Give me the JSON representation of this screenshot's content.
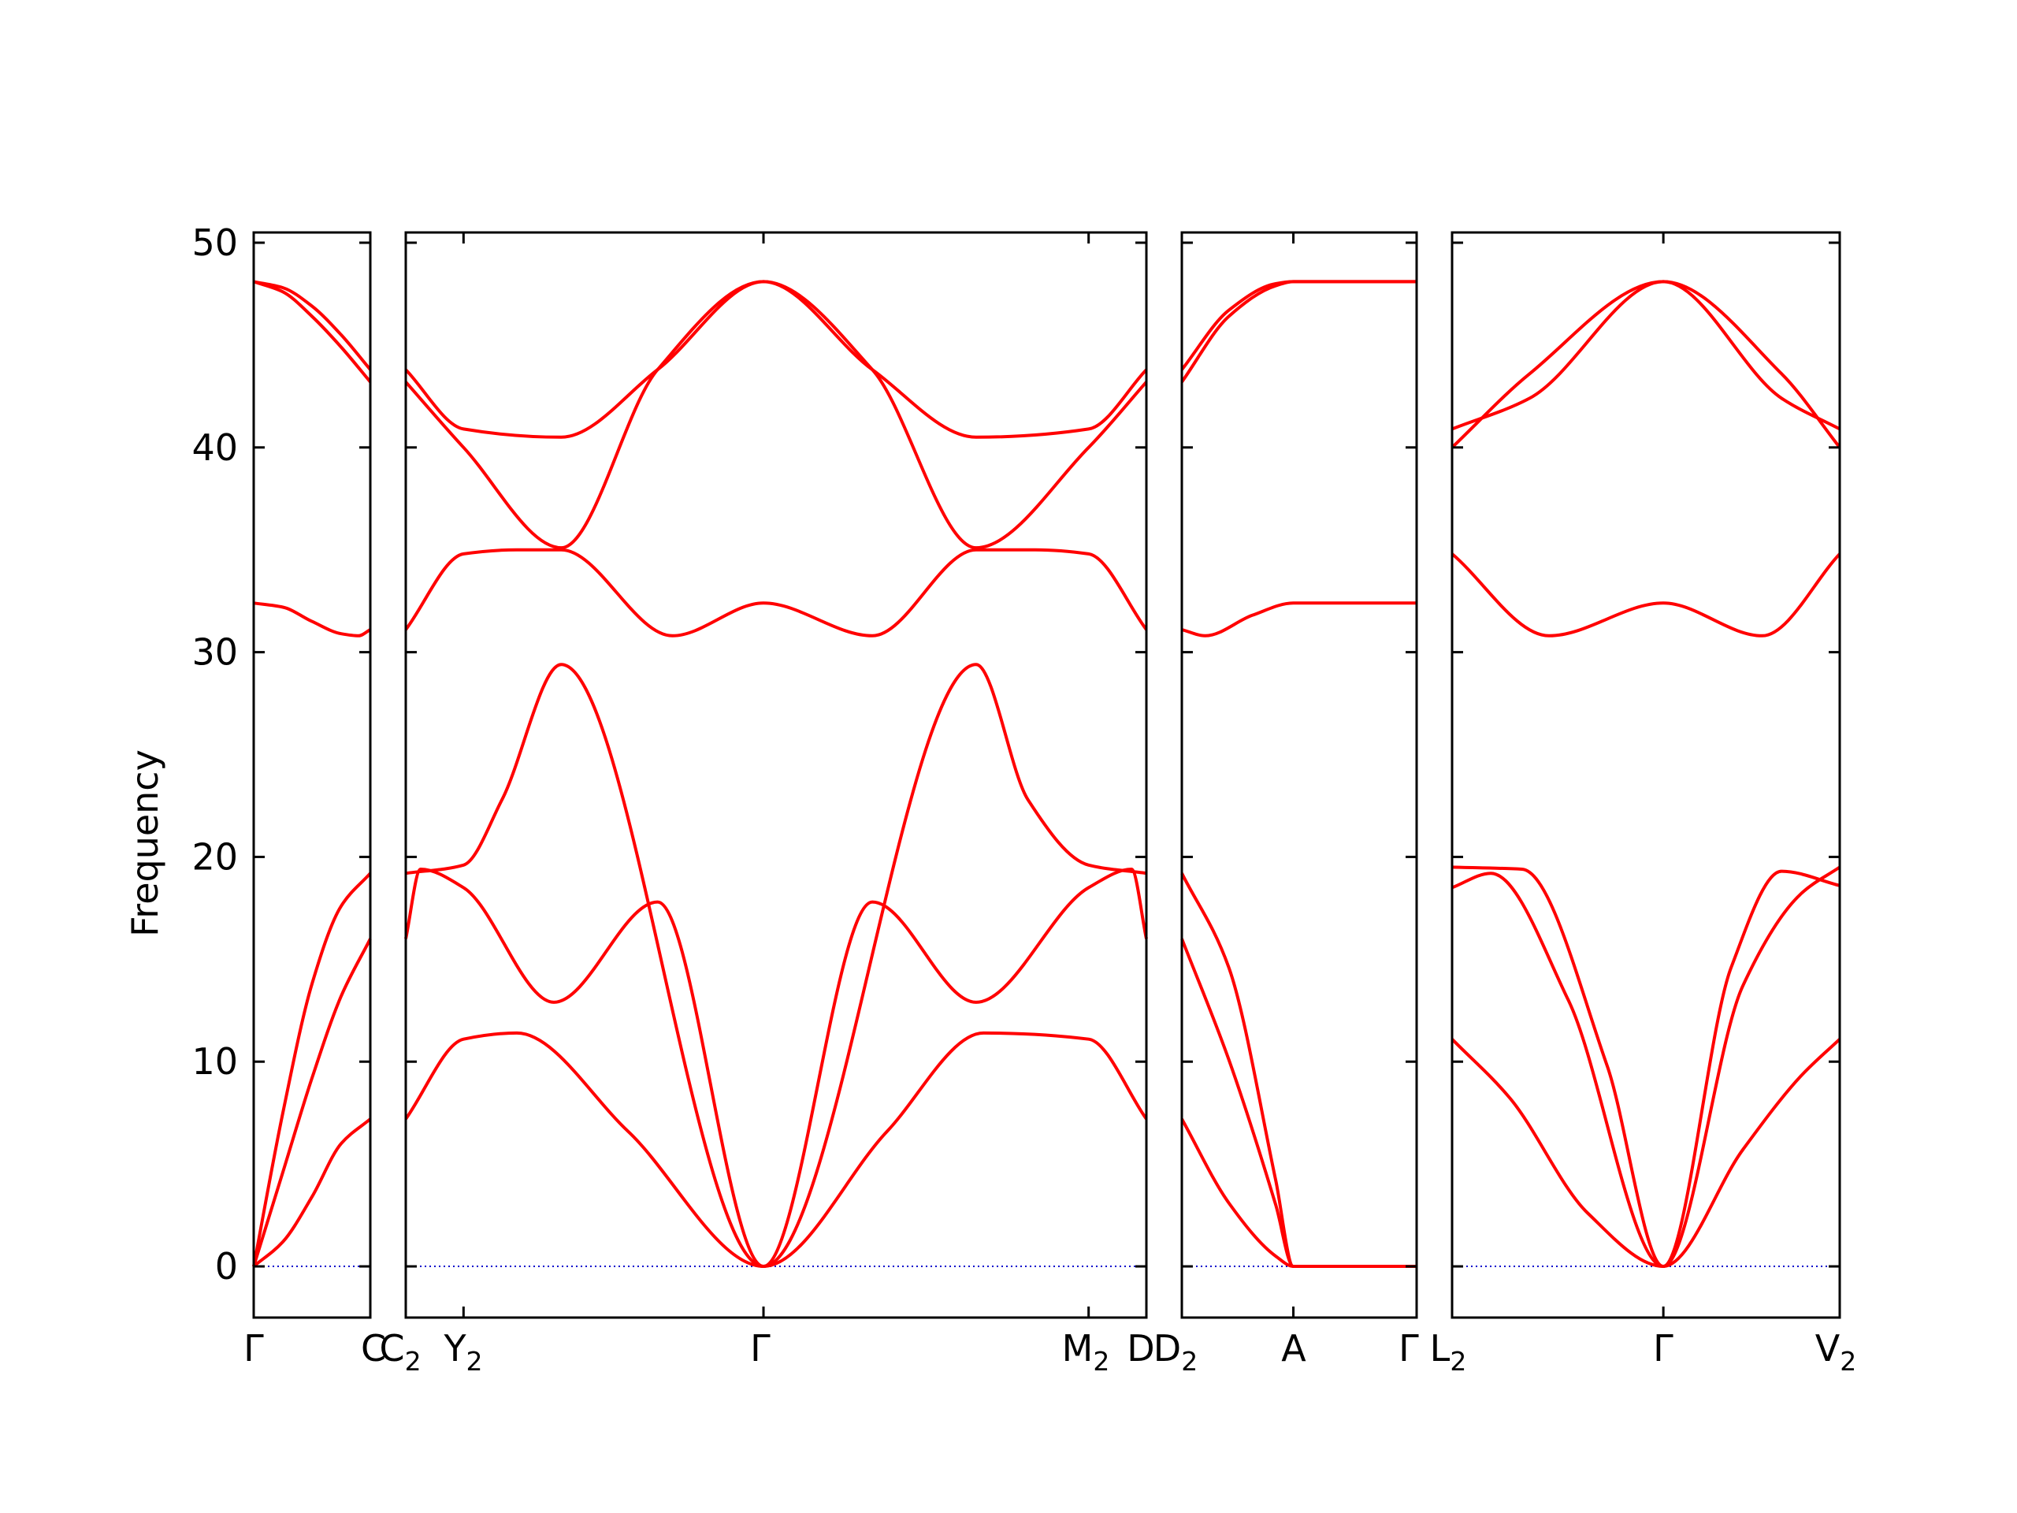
{
  "chart_data": {
    "type": "line",
    "ylabel": "Frequency",
    "ylim": [
      -2.5,
      50.5
    ],
    "yticks": [
      0,
      10,
      20,
      30,
      40,
      50
    ],
    "colors": {
      "band": "#ff0000",
      "zero_line": "#0000cc",
      "axes": "#000000"
    },
    "grid": false,
    "panels": [
      {
        "xlabels": [
          {
            "main": "Γ",
            "sub": ""
          },
          {
            "main": "C",
            "sub": ""
          }
        ],
        "bands": [
          {
            "x": [
              0,
              0.25,
              0.5,
              0.75,
              1
            ],
            "y": [
              0,
              1.2,
              3.4,
              6.0,
              7.2
            ]
          },
          {
            "x": [
              0,
              0.25,
              0.5,
              0.75,
              1
            ],
            "y": [
              0,
              4.6,
              9.2,
              13.2,
              16.0
            ]
          },
          {
            "x": [
              0,
              0.25,
              0.5,
              0.75,
              1
            ],
            "y": [
              0,
              7.5,
              13.8,
              17.6,
              19.2
            ]
          },
          {
            "x": [
              0,
              0.25,
              0.5,
              0.75,
              0.9,
              1
            ],
            "y": [
              32.4,
              32.2,
              31.5,
              30.9,
              30.8,
              31.1
            ]
          },
          {
            "x": [
              0,
              0.25,
              0.5,
              0.75,
              1
            ],
            "y": [
              48.1,
              47.6,
              46.4,
              44.9,
              43.2
            ]
          },
          {
            "x": [
              0,
              0.25,
              0.5,
              0.75,
              1
            ],
            "y": [
              48.1,
              47.8,
              46.9,
              45.5,
              43.8
            ]
          }
        ]
      },
      {
        "xlabels": [
          {
            "main": "C",
            "sub": "2"
          },
          {
            "main": "Y",
            "sub": "2"
          },
          {
            "main": "Γ",
            "sub": ""
          },
          {
            "main": "M",
            "sub": "2"
          },
          {
            "main": "D",
            "sub": ""
          }
        ],
        "label_x": [
          0,
          0.078,
          0.483,
          0.922,
          1
        ],
        "bands": [
          {
            "x": [
              0,
              0.078,
              0.15,
              0.3,
              0.483,
              0.65,
              0.78,
              0.922,
              1
            ],
            "y": [
              7.2,
              11.1,
              11.4,
              6.6,
              0,
              6.6,
              11.4,
              11.1,
              7.2
            ]
          },
          {
            "x": [
              0,
              0.02,
              0.078,
              0.2,
              0.34,
              0.483,
              0.63,
              0.77,
              0.922,
              0.98,
              1
            ],
            "y": [
              16.0,
              19.4,
              18.5,
              12.9,
              17.8,
              0,
              17.8,
              12.9,
              18.5,
              19.4,
              16.0
            ]
          },
          {
            "x": [
              0,
              0.078,
              0.13,
              0.21,
              0.483,
              0.77,
              0.84,
              0.922,
              1
            ],
            "y": [
              19.2,
              19.6,
              22.8,
              29.4,
              0,
              29.4,
              22.8,
              19.6,
              19.2
            ]
          },
          {
            "x": [
              0,
              0.078,
              0.15,
              0.21,
              0.36,
              0.483,
              0.63,
              0.77,
              0.85,
              0.922,
              1
            ],
            "y": [
              31.1,
              34.8,
              35.0,
              35.0,
              30.8,
              32.4,
              30.8,
              35.0,
              35.0,
              34.8,
              31.1
            ]
          },
          {
            "x": [
              0,
              0.078,
              0.21,
              0.34,
              0.483,
              0.63,
              0.77,
              0.922,
              1
            ],
            "y": [
              43.2,
              40.0,
              35.1,
              43.8,
              48.1,
              43.8,
              35.1,
              40.0,
              43.2
            ]
          },
          {
            "x": [
              0,
              0.078,
              0.21,
              0.34,
              0.483,
              0.63,
              0.77,
              0.922,
              1
            ],
            "y": [
              43.8,
              40.9,
              40.5,
              43.8,
              48.1,
              43.8,
              40.5,
              40.9,
              43.8
            ]
          }
        ]
      },
      {
        "xlabels": [
          {
            "main": "D",
            "sub": "2"
          },
          {
            "main": "A",
            "sub": ""
          },
          {
            "main": "Γ",
            "sub": ""
          }
        ],
        "label_x": [
          0,
          0.475,
          1
        ],
        "bands": [
          {
            "x": [
              0,
              0.2,
              0.4,
              0.475,
              1
            ],
            "y": [
              7.2,
              3.1,
              0.5,
              0,
              0
            ]
          },
          {
            "x": [
              0,
              0.2,
              0.4,
              0.475,
              1
            ],
            "y": [
              16.0,
              10.1,
              3.0,
              0,
              0
            ]
          },
          {
            "x": [
              0,
              0.2,
              0.4,
              0.475,
              1
            ],
            "y": [
              19.2,
              14.6,
              4.2,
              0,
              0
            ]
          },
          {
            "x": [
              0,
              0.1,
              0.3,
              0.475,
              1
            ],
            "y": [
              31.1,
              30.8,
              31.8,
              32.4,
              32.4
            ]
          },
          {
            "x": [
              0,
              0.2,
              0.4,
              0.475,
              1
            ],
            "y": [
              43.2,
              46.4,
              47.9,
              48.1,
              48.1
            ]
          },
          {
            "x": [
              0,
              0.2,
              0.4,
              0.475,
              1
            ],
            "y": [
              43.8,
              46.7,
              48.0,
              48.1,
              48.1
            ]
          }
        ]
      },
      {
        "xlabels": [
          {
            "main": "L",
            "sub": "2"
          },
          {
            "main": "Γ",
            "sub": ""
          },
          {
            "main": "V",
            "sub": "2"
          }
        ],
        "label_x": [
          0,
          0.545,
          1
        ],
        "bands": [
          {
            "x": [
              0,
              0.15,
              0.35,
              0.545,
              0.75,
              0.9,
              1
            ],
            "y": [
              11.1,
              8.2,
              2.6,
              0,
              5.7,
              9.3,
              11.1
            ]
          },
          {
            "x": [
              0,
              0.1,
              0.3,
              0.545,
              0.75,
              0.9,
              1
            ],
            "y": [
              18.5,
              19.2,
              13.0,
              0,
              13.7,
              18.2,
              19.5
            ]
          },
          {
            "x": [
              0,
              0.18,
              0.4,
              0.545,
              0.72,
              0.85,
              1
            ],
            "y": [
              19.5,
              19.4,
              9.8,
              0,
              14.6,
              19.3,
              18.6
            ]
          },
          {
            "x": [
              0,
              0.25,
              0.545,
              0.8,
              1
            ],
            "y": [
              34.8,
              30.8,
              32.4,
              30.8,
              34.8
            ]
          },
          {
            "x": [
              0,
              0.2,
              0.545,
              0.85,
              1
            ],
            "y": [
              40.0,
              43.6,
              48.1,
              42.4,
              40.9
            ]
          },
          {
            "x": [
              0,
              0.2,
              0.545,
              0.85,
              1
            ],
            "y": [
              40.9,
              42.4,
              48.1,
              43.6,
              40.0
            ]
          }
        ]
      }
    ]
  }
}
